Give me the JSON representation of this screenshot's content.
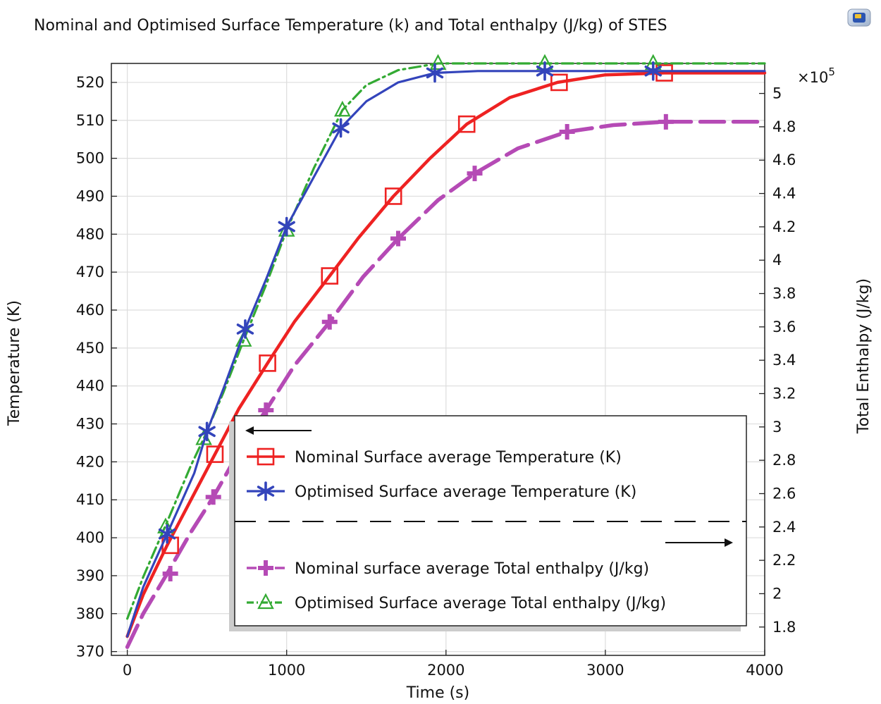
{
  "chart_data": {
    "type": "line",
    "title": "Nominal and Optimised Surface Temperature (k) and Total enthalpy (J/kg) of STES",
    "xlabel": "Time (s)",
    "ylabel": "Temperature (K)",
    "y2label": "Total Enthalpy (J/kg)",
    "y2_multiplier": "×10",
    "y2_exponent": "5",
    "xlim": [
      -100,
      4000
    ],
    "ylim": [
      369,
      525
    ],
    "y2lim": [
      1.63,
      5.18
    ],
    "xticks": [
      0,
      1000,
      2000,
      3000,
      4000
    ],
    "yticks": [
      370,
      380,
      390,
      400,
      410,
      420,
      430,
      440,
      450,
      460,
      470,
      480,
      490,
      500,
      510,
      520
    ],
    "y2ticks": [
      1.8,
      2,
      2.2,
      2.4,
      2.6,
      2.8,
      3,
      3.2,
      3.4,
      3.6,
      3.8,
      4,
      4.2,
      4.4,
      4.6,
      4.8,
      5
    ],
    "grid": true,
    "legend_position": "bottom-right",
    "legend_left_axis_arrow": "←",
    "legend_right_axis_arrow": "→",
    "series": [
      {
        "name": "Nominal Surface average Temperature (K)",
        "axis": "left",
        "color": "#ee2222",
        "marker": "square",
        "x": [
          0,
          100,
          250,
          400,
          550,
          700,
          880,
          1050,
          1270,
          1450,
          1670,
          1900,
          2130,
          2400,
          2700,
          3000,
          3370,
          4000
        ],
        "y": [
          374,
          385,
          398,
          410,
          422,
          434,
          446,
          457,
          469,
          479,
          490,
          500,
          509,
          516,
          520,
          522,
          522.5,
          522.5
        ],
        "markers_x": [
          270,
          550,
          880,
          1270,
          1670,
          2130,
          2710,
          3370
        ],
        "markers_y": [
          398,
          422,
          446,
          469,
          490,
          509,
          520,
          522.5
        ]
      },
      {
        "name": "Optimised Surface average Temperature (K)",
        "axis": "left",
        "color": "#3344bb",
        "marker": "asterisk",
        "x": [
          0,
          100,
          250,
          420,
          500,
          610,
          740,
          870,
          1000,
          1170,
          1340,
          1500,
          1700,
          1930,
          2200,
          2600,
          3300,
          4000
        ],
        "y": [
          374,
          387,
          401,
          417,
          428,
          440,
          455,
          468,
          482,
          495,
          508,
          515,
          520,
          522.5,
          523,
          523,
          523,
          523
        ],
        "markers_x": [
          250,
          500,
          740,
          1000,
          1340,
          1930,
          2620,
          3300
        ],
        "markers_y": [
          401,
          428,
          455,
          482,
          508,
          522.5,
          523,
          523
        ]
      },
      {
        "name": "Nominal surface average Total enthalpy (J/kg)",
        "axis": "right",
        "color": "#b54ab5",
        "marker": "plus",
        "x": [
          0,
          100,
          250,
          400,
          540,
          700,
          870,
          1050,
          1270,
          1480,
          1700,
          1950,
          2180,
          2450,
          2760,
          3050,
          3380,
          4000
        ],
        "y": [
          1.68,
          1.88,
          2.12,
          2.37,
          2.58,
          2.85,
          3.1,
          3.37,
          3.63,
          3.9,
          4.13,
          4.36,
          4.52,
          4.67,
          4.77,
          4.81,
          4.83,
          4.83
        ],
        "markers_x": [
          270,
          540,
          870,
          1270,
          1700,
          2180,
          2760,
          3380
        ],
        "markers_y": [
          2.12,
          2.58,
          3.1,
          3.63,
          4.13,
          4.52,
          4.77,
          4.83
        ]
      },
      {
        "name": "Optimised Surface average Total enthalpy (J/kg)",
        "axis": "right",
        "color": "#33aa33",
        "marker": "triangle",
        "x": [
          0,
          100,
          250,
          400,
          480,
          600,
          730,
          870,
          1000,
          1170,
          1350,
          1500,
          1700,
          1950,
          2200,
          2600,
          3300,
          4000
        ],
        "y": [
          1.85,
          2.1,
          2.43,
          2.77,
          2.93,
          3.2,
          3.52,
          3.85,
          4.18,
          4.55,
          4.9,
          5.05,
          5.14,
          5.18,
          5.18,
          5.18,
          5.18,
          5.18
        ],
        "markers_x": [
          240,
          480,
          730,
          1000,
          1350,
          1950,
          2620,
          3300
        ],
        "markers_y": [
          2.4,
          2.93,
          3.52,
          4.18,
          4.9,
          5.18,
          5.18,
          5.18
        ]
      }
    ]
  }
}
